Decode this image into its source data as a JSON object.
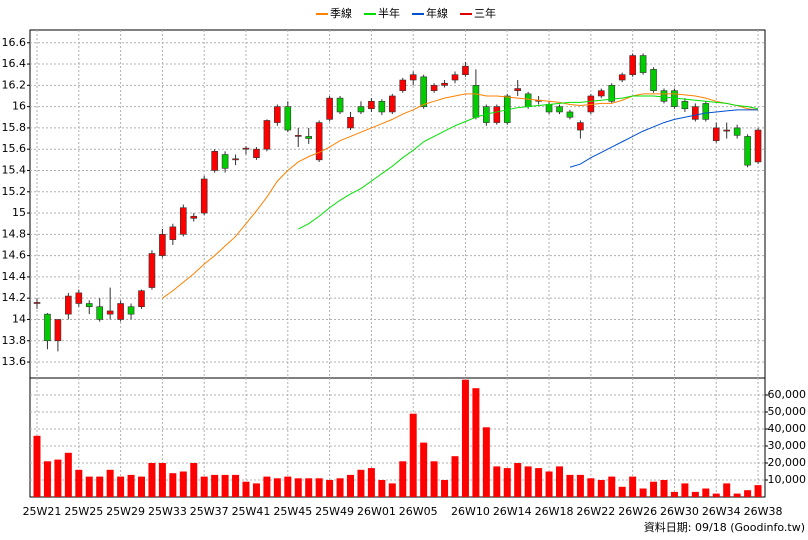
{
  "chart_data": {
    "type": "candlestick",
    "categories": [
      "25W21",
      null,
      null,
      null,
      "25W25",
      null,
      null,
      null,
      "25W29",
      null,
      null,
      null,
      "25W33",
      null,
      null,
      null,
      "25W37",
      null,
      null,
      null,
      "25W41",
      null,
      null,
      null,
      "25W45",
      null,
      null,
      null,
      "25W49",
      null,
      null,
      null,
      "26W01",
      null,
      null,
      null,
      "26W05",
      null,
      null,
      null,
      null,
      "26W10",
      null,
      null,
      null,
      "26W14",
      null,
      null,
      null,
      "26W18",
      null,
      null,
      null,
      "26W22",
      null,
      null,
      null,
      "26W26",
      null,
      null,
      null,
      "26W30",
      null,
      null,
      null,
      "26W34",
      null,
      null,
      null,
      "26W38"
    ],
    "open": [
      14.15,
      14.05,
      13.8,
      14.05,
      14.15,
      14.15,
      14.12,
      14.05,
      14.0,
      14.12,
      14.12,
      14.3,
      14.6,
      14.75,
      14.8,
      14.95,
      15.0,
      15.4,
      15.55,
      15.5,
      15.6,
      15.52,
      15.6,
      15.85,
      16.0,
      15.72,
      15.72,
      15.5,
      15.88,
      16.08,
      15.8,
      16.0,
      15.98,
      16.05,
      15.95,
      16.15,
      16.25,
      16.28,
      16.15,
      16.2,
      16.25,
      16.3,
      16.2,
      16.0,
      15.85,
      16.1,
      16.15,
      16.12,
      16.05,
      16.02,
      16.0,
      15.95,
      15.78,
      15.95,
      16.1,
      16.2,
      16.25,
      16.3,
      16.48,
      16.35,
      16.15,
      16.15,
      16.05,
      15.88,
      16.03,
      15.68,
      15.77,
      15.8,
      15.72,
      15.48
    ],
    "high": [
      14.2,
      14.06,
      14.0,
      14.25,
      14.28,
      14.18,
      14.2,
      14.3,
      14.18,
      14.15,
      14.28,
      14.65,
      14.85,
      14.9,
      15.08,
      15.0,
      15.35,
      15.6,
      15.58,
      15.55,
      15.63,
      15.62,
      15.88,
      16.02,
      16.05,
      15.8,
      15.8,
      15.87,
      16.1,
      16.1,
      15.95,
      16.05,
      16.08,
      16.07,
      16.12,
      16.27,
      16.33,
      16.3,
      16.22,
      16.25,
      16.33,
      16.42,
      16.35,
      16.02,
      16.02,
      16.12,
      16.25,
      16.14,
      16.1,
      16.05,
      16.02,
      15.97,
      15.87,
      16.12,
      16.17,
      16.22,
      16.32,
      16.5,
      16.5,
      16.37,
      16.17,
      16.17,
      16.08,
      16.03,
      16.05,
      15.85,
      15.85,
      15.83,
      15.74,
      15.8
    ],
    "low": [
      14.1,
      13.72,
      13.7,
      14.0,
      14.12,
      14.05,
      13.98,
      14.0,
      13.98,
      14.0,
      14.1,
      14.28,
      14.58,
      14.7,
      14.78,
      14.92,
      14.98,
      15.38,
      15.38,
      15.45,
      15.55,
      15.5,
      15.58,
      15.82,
      15.76,
      15.62,
      15.65,
      15.48,
      15.86,
      15.93,
      15.78,
      15.93,
      15.95,
      15.92,
      15.93,
      16.13,
      16.2,
      15.98,
      16.13,
      16.18,
      16.22,
      16.28,
      15.88,
      15.82,
      15.83,
      15.83,
      16.1,
      15.98,
      16.02,
      15.93,
      15.93,
      15.88,
      15.7,
      15.93,
      16.08,
      16.03,
      16.23,
      16.28,
      16.3,
      16.13,
      16.03,
      15.98,
      15.95,
      15.86,
      15.86,
      15.66,
      15.7,
      15.7,
      15.43,
      15.46
    ],
    "close": [
      14.16,
      13.8,
      14.0,
      14.22,
      14.25,
      14.12,
      14.0,
      14.08,
      14.15,
      14.05,
      14.27,
      14.62,
      14.8,
      14.87,
      15.05,
      14.97,
      15.32,
      15.58,
      15.42,
      15.51,
      15.61,
      15.6,
      15.87,
      16.0,
      15.78,
      15.73,
      15.7,
      15.85,
      16.08,
      15.95,
      15.9,
      15.95,
      16.05,
      15.95,
      16.1,
      16.25,
      16.3,
      16.0,
      16.2,
      16.22,
      16.3,
      16.38,
      15.9,
      15.85,
      16.0,
      15.85,
      16.17,
      16.0,
      16.06,
      15.95,
      15.95,
      15.9,
      15.85,
      16.1,
      16.15,
      16.05,
      16.3,
      16.48,
      16.32,
      16.15,
      16.05,
      16.0,
      15.98,
      16.0,
      15.88,
      15.8,
      15.78,
      15.73,
      15.45,
      15.78
    ],
    "up_color": "#ff0000",
    "down_color": "#00cc00",
    "ylim": [
      13.45,
      16.72
    ],
    "yticks": [
      13.6,
      13.8,
      14,
      14.2,
      14.4,
      14.6,
      14.8,
      15,
      15.2,
      15.4,
      15.6,
      15.8,
      16,
      16.2,
      16.4,
      16.6
    ],
    "series": [
      {
        "name": "季線",
        "color": "#ff8000",
        "values": [
          null,
          null,
          null,
          null,
          null,
          null,
          null,
          null,
          null,
          null,
          null,
          null,
          14.2,
          14.27,
          14.35,
          14.43,
          14.52,
          14.6,
          14.69,
          14.78,
          14.9,
          15.02,
          15.15,
          15.3,
          15.4,
          15.48,
          15.53,
          15.57,
          15.62,
          15.68,
          15.72,
          15.76,
          15.8,
          15.84,
          15.88,
          15.93,
          15.97,
          16.02,
          16.05,
          16.08,
          16.1,
          16.12,
          16.12,
          16.1,
          16.1,
          16.09,
          16.08,
          16.07,
          16.06,
          16.05,
          16.04,
          16.02,
          16.01,
          16.02,
          16.03,
          16.03,
          16.06,
          16.1,
          16.12,
          16.12,
          16.12,
          16.12,
          16.11,
          16.1,
          16.08,
          16.05,
          16.03,
          16.01,
          15.98,
          15.97
        ]
      },
      {
        "name": "半年",
        "color": "#00e000",
        "values": [
          null,
          null,
          null,
          null,
          null,
          null,
          null,
          null,
          null,
          null,
          null,
          null,
          null,
          null,
          null,
          null,
          null,
          null,
          null,
          null,
          null,
          null,
          null,
          null,
          null,
          14.85,
          14.9,
          14.97,
          15.05,
          15.12,
          15.18,
          15.23,
          15.3,
          15.37,
          15.44,
          15.52,
          15.59,
          15.67,
          15.72,
          15.77,
          15.82,
          15.86,
          15.9,
          15.93,
          15.95,
          15.97,
          15.99,
          16.0,
          16.01,
          16.02,
          16.03,
          16.04,
          16.04,
          16.05,
          16.06,
          16.07,
          16.08,
          16.1,
          16.1,
          16.1,
          16.09,
          16.08,
          16.07,
          16.06,
          16.05,
          16.04,
          16.03,
          16.01,
          16.0,
          15.98
        ]
      },
      {
        "name": "年線",
        "color": "#0050d0",
        "values": [
          null,
          null,
          null,
          null,
          null,
          null,
          null,
          null,
          null,
          null,
          null,
          null,
          null,
          null,
          null,
          null,
          null,
          null,
          null,
          null,
          null,
          null,
          null,
          null,
          null,
          null,
          null,
          null,
          null,
          null,
          null,
          null,
          null,
          null,
          null,
          null,
          null,
          null,
          null,
          null,
          null,
          null,
          null,
          null,
          null,
          null,
          null,
          null,
          null,
          null,
          null,
          15.43,
          15.46,
          15.52,
          15.57,
          15.62,
          15.67,
          15.72,
          15.77,
          15.81,
          15.85,
          15.88,
          15.9,
          15.92,
          15.94,
          15.95,
          15.96,
          15.97,
          15.97,
          15.97
        ]
      },
      {
        "name": "三年",
        "color": "#e00000",
        "values": [
          null,
          null,
          null,
          null,
          null,
          null,
          null,
          null,
          null,
          null,
          null,
          null,
          null,
          null,
          null,
          null,
          null,
          null,
          null,
          null,
          null,
          null,
          null,
          null,
          null,
          null,
          null,
          null,
          null,
          null,
          null,
          null,
          null,
          null,
          null,
          null,
          null,
          null,
          null,
          null,
          null,
          null,
          null,
          null,
          null,
          null,
          null,
          null,
          null,
          null,
          null,
          null,
          null,
          null,
          null,
          null,
          null,
          null,
          null,
          null,
          null,
          null,
          null,
          null,
          null,
          null,
          null,
          null,
          null,
          null
        ]
      }
    ],
    "volume": {
      "color": "#ff0000",
      "values": [
        36000,
        21000,
        22000,
        26000,
        16000,
        12000,
        12000,
        16000,
        12000,
        13000,
        12000,
        20000,
        20000,
        14000,
        15000,
        20000,
        12000,
        13000,
        13000,
        13000,
        9000,
        8000,
        12000,
        11000,
        12000,
        11000,
        11000,
        11000,
        10000,
        11000,
        13000,
        16000,
        17000,
        10000,
        8000,
        21000,
        49000,
        32000,
        21000,
        10000,
        24000,
        69000,
        64000,
        41000,
        18000,
        17000,
        20000,
        18000,
        17000,
        15000,
        18000,
        13000,
        13000,
        11000,
        10000,
        12000,
        6000,
        12000,
        5000,
        9000,
        10000,
        3000,
        8000,
        3000,
        5000,
        2000,
        8000,
        2000,
        4000,
        7000
      ],
      "ylim": [
        0,
        70000
      ],
      "yticks": [
        {
          "value": 10000,
          "label": "10,000"
        },
        {
          "value": 20000,
          "label": "20,000"
        },
        {
          "value": 30000,
          "label": "30,000"
        },
        {
          "value": 40000,
          "label": "40,000"
        },
        {
          "value": 50000,
          "label": "50,000"
        },
        {
          "value": 60000,
          "label": "60,000"
        }
      ]
    },
    "grid": true,
    "annotation": "資料日期: 09/18 (Goodinfo.tw)"
  }
}
